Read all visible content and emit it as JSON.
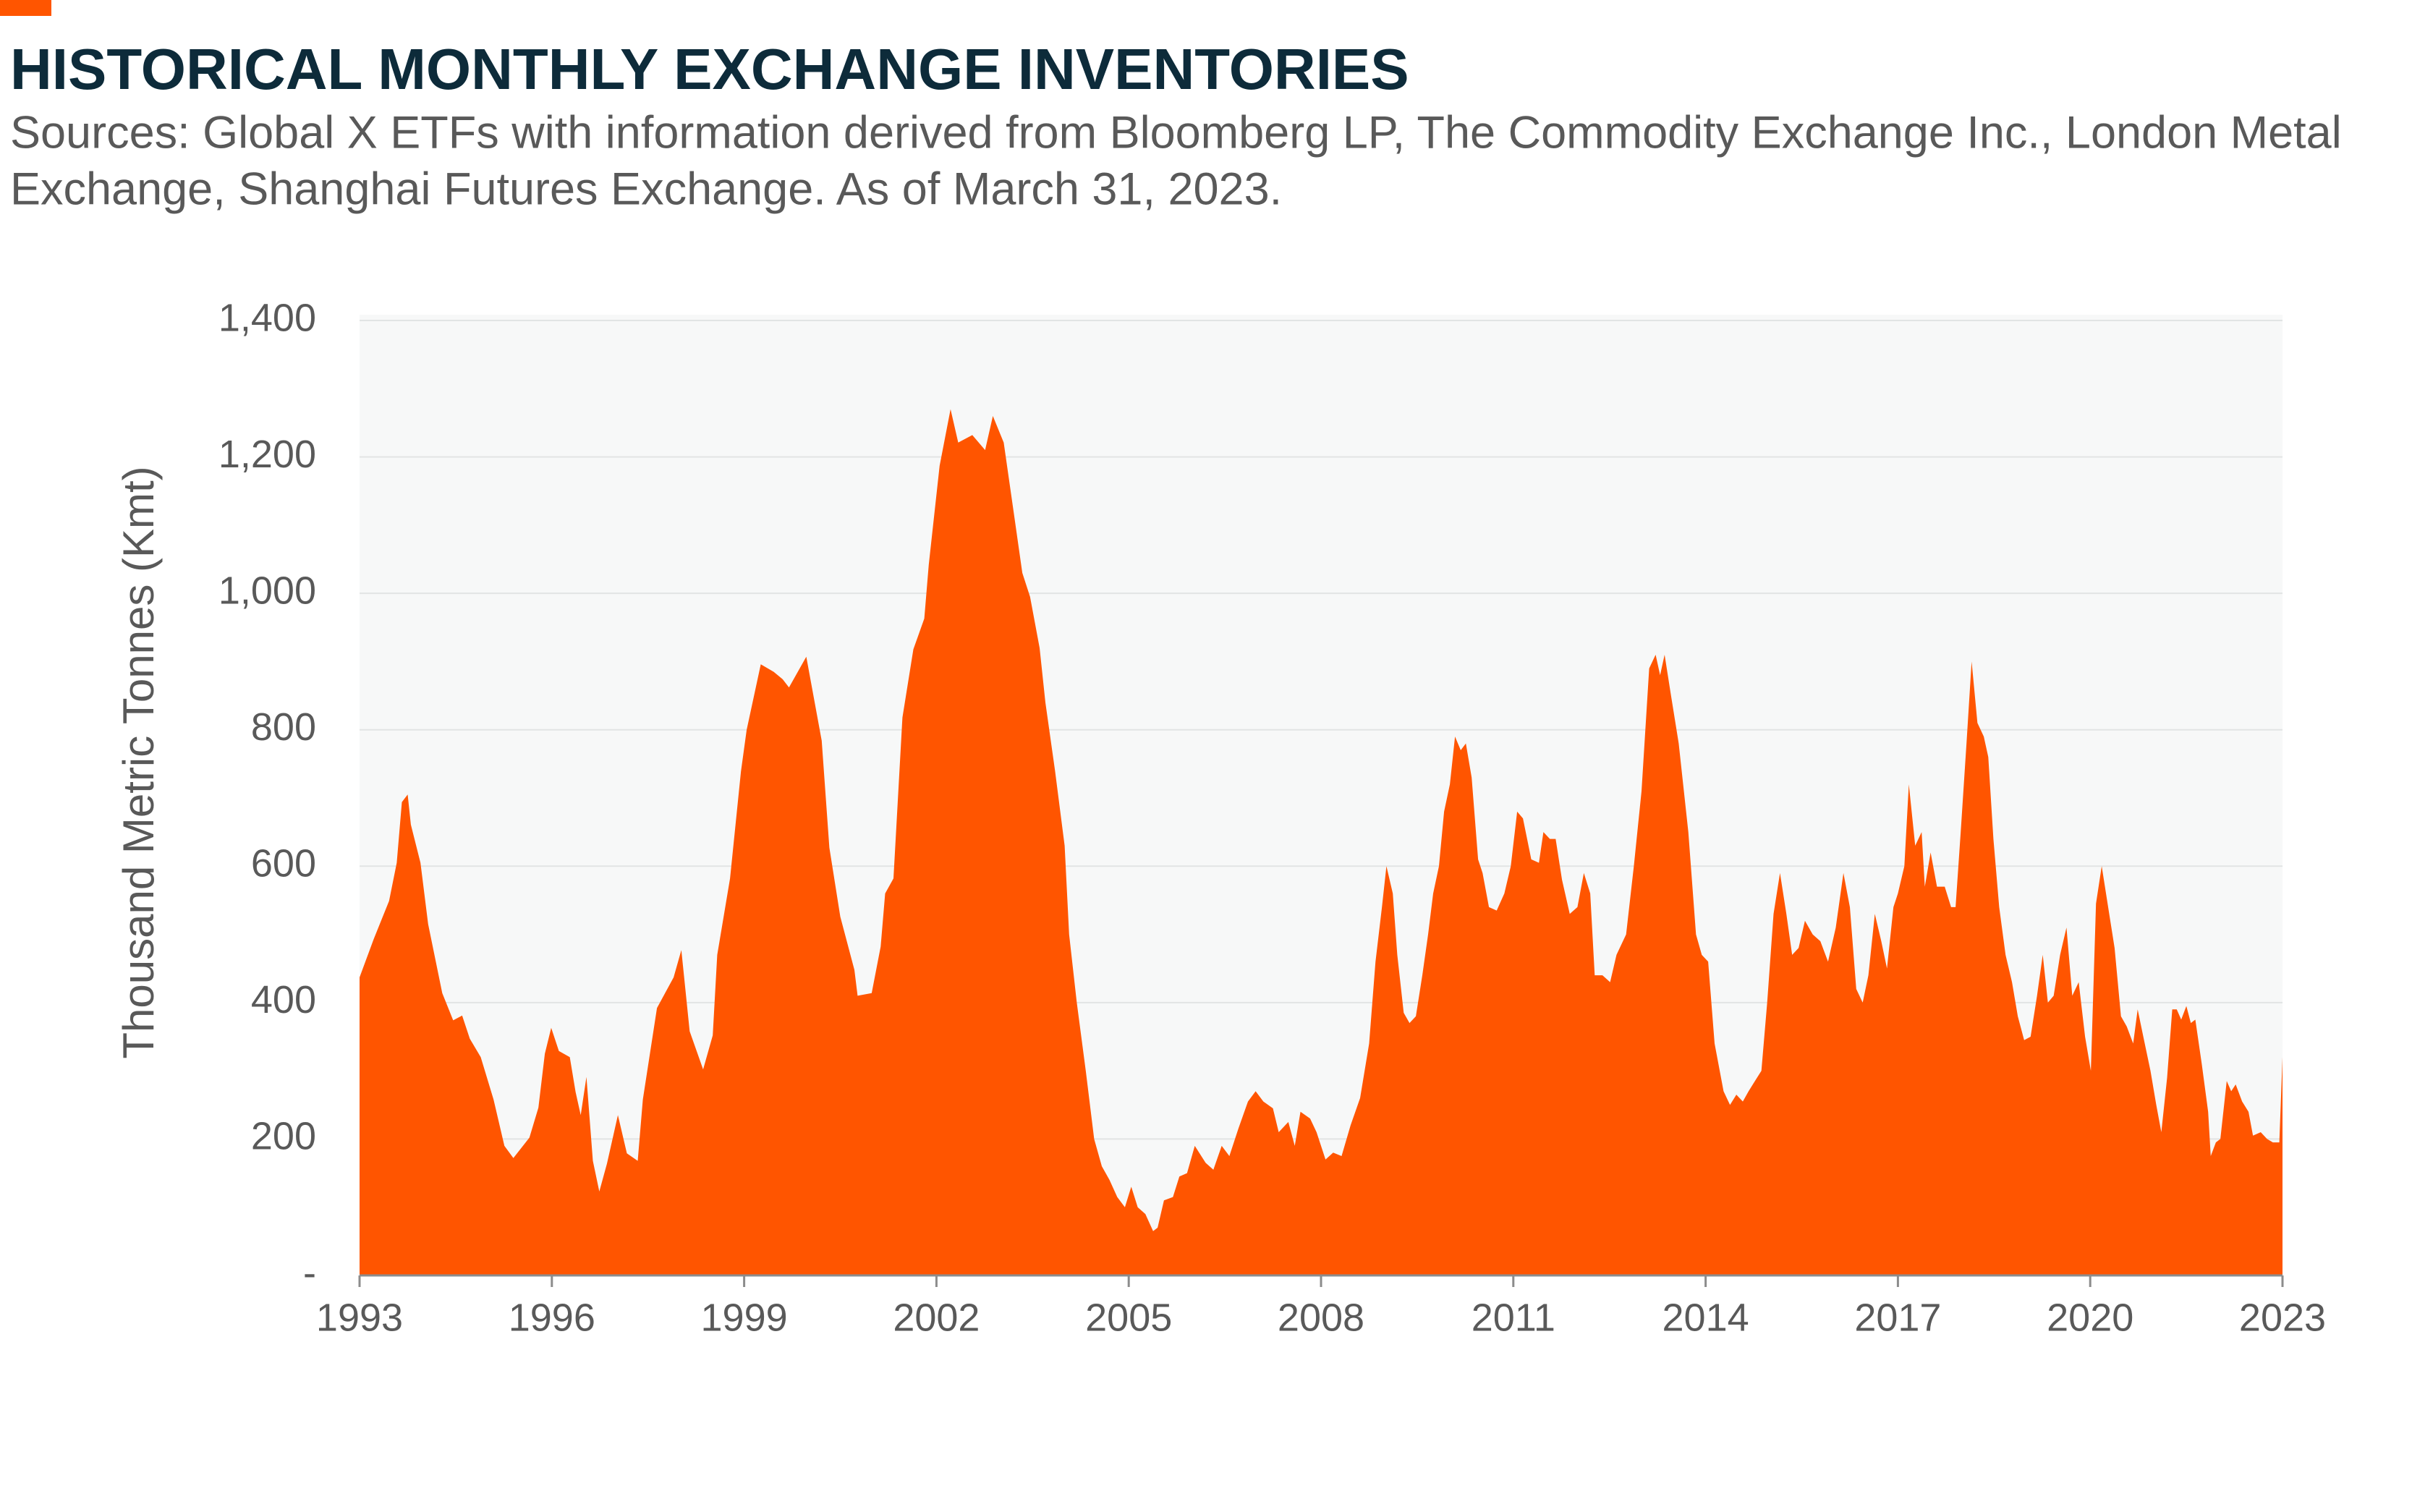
{
  "chart_data": {
    "type": "area",
    "title": "HISTORICAL MONTHLY EXCHANGE INVENTORIES",
    "subtitle": [
      "Sources: Global X ETFs with information derived from Bloomberg LP, The Commodity Exchange Inc., London Metal",
      "Exchange, Shanghai Futures Exchange. As of March 31, 2023."
    ],
    "y_label": "Thousand Metric Tonnes (Kmt)",
    "color": "#ff5500",
    "grid": true,
    "xlim": [
      1993,
      2023
    ],
    "xticks": [
      1993,
      1996,
      1999,
      2002,
      2005,
      2008,
      2011,
      2014,
      2017,
      2020,
      2023
    ],
    "ylim": [
      0,
      1400
    ],
    "yticks": [
      {
        "value": 0,
        "label": "-"
      },
      200,
      400,
      600,
      800,
      {
        "value": 1000,
        "label": "1,000"
      },
      {
        "value": 1200,
        "label": "1,200"
      },
      {
        "value": 1400,
        "label": "1,400"
      }
    ],
    "x": [
      1993.0,
      1993.22,
      1993.46,
      1993.58,
      1993.66,
      1993.75,
      1993.8,
      1993.95,
      1994.07,
      1994.29,
      1994.46,
      1994.6,
      1994.72,
      1994.89,
      1995.09,
      1995.26,
      1995.4,
      1995.65,
      1995.79,
      1995.89,
      1995.99,
      1996.11,
      1996.28,
      1996.37,
      1996.45,
      1996.54,
      1996.64,
      1996.74,
      1996.86,
      1997.03,
      1997.17,
      1997.34,
      1997.42,
      1997.64,
      1997.9,
      1998.02,
      1998.15,
      1998.36,
      1998.51,
      1998.58,
      1998.78,
      1998.95,
      1999.04,
      1999.26,
      1999.46,
      1999.6,
      1999.7,
      1999.97,
      2000.21,
      2000.33,
      2000.5,
      2000.72,
      2000.77,
      2000.99,
      2001.13,
      2001.2,
      2001.33,
      2001.47,
      2001.64,
      2001.81,
      2001.88,
      2002.05,
      2002.22,
      2002.34,
      2002.56,
      2002.76,
      2002.88,
      2003.05,
      2003.22,
      2003.34,
      2003.46,
      2003.61,
      2003.7,
      2003.85,
      2004.0,
      2004.07,
      2004.19,
      2004.33,
      2004.46,
      2004.58,
      2004.7,
      2004.82,
      2004.94,
      2005.04,
      2005.14,
      2005.26,
      2005.38,
      2005.45,
      2005.55,
      2005.69,
      2005.79,
      2005.91,
      2006.03,
      2006.2,
      2006.32,
      2006.45,
      2006.57,
      2006.71,
      2006.86,
      2006.98,
      2007.1,
      2007.25,
      2007.34,
      2007.49,
      2007.59,
      2007.68,
      2007.83,
      2007.93,
      2008.07,
      2008.19,
      2008.32,
      2008.46,
      2008.61,
      2008.75,
      2008.85,
      2008.95,
      2009.02,
      2009.12,
      2009.19,
      2009.29,
      2009.38,
      2009.48,
      2009.58,
      2009.67,
      2009.75,
      2009.84,
      2009.92,
      2010.01,
      2010.09,
      2010.18,
      2010.26,
      2010.35,
      2010.45,
      2010.52,
      2010.62,
      2010.74,
      2010.86,
      2010.96,
      2011.06,
      2011.15,
      2011.28,
      2011.4,
      2011.47,
      2011.57,
      2011.66,
      2011.76,
      2011.88,
      2012.0,
      2012.1,
      2012.2,
      2012.27,
      2012.39,
      2012.51,
      2012.61,
      2012.76,
      2012.88,
      2013.0,
      2013.12,
      2013.22,
      2013.29,
      2013.36,
      2013.46,
      2013.58,
      2013.73,
      2013.85,
      2013.94,
      2014.04,
      2014.14,
      2014.28,
      2014.38,
      2014.48,
      2014.58,
      2014.67,
      2014.77,
      2014.87,
      2014.96,
      2015.06,
      2015.16,
      2015.26,
      2015.35,
      2015.45,
      2015.55,
      2015.67,
      2015.79,
      2015.91,
      2016.03,
      2016.15,
      2016.25,
      2016.35,
      2016.45,
      2016.54,
      2016.64,
      2016.74,
      2016.83,
      2016.93,
      2017.0,
      2017.1,
      2017.17,
      2017.27,
      2017.37,
      2017.42,
      2017.51,
      2017.61,
      2017.73,
      2017.83,
      2017.9,
      2017.98,
      2018.07,
      2018.15,
      2018.24,
      2018.34,
      2018.41,
      2018.49,
      2018.58,
      2018.68,
      2018.78,
      2018.87,
      2018.97,
      2019.07,
      2019.17,
      2019.26,
      2019.34,
      2019.43,
      2019.53,
      2019.63,
      2019.72,
      2019.82,
      2019.92,
      2020.01,
      2020.09,
      2020.18,
      2020.28,
      2020.38,
      2020.48,
      2020.57,
      2020.67,
      2020.74,
      2020.84,
      2020.94,
      2021.03,
      2021.11,
      2021.2,
      2021.28,
      2021.35,
      2021.42,
      2021.5,
      2021.57,
      2021.64,
      2021.74,
      2021.84,
      2021.88,
      2021.96,
      2022.03,
      2022.13,
      2022.2,
      2022.27,
      2022.37,
      2022.47,
      2022.54,
      2022.66,
      2022.76,
      2022.85,
      2022.95,
      2023.0
    ],
    "values": [
      437,
      493,
      549,
      605,
      694,
      705,
      661,
      605,
      515,
      414,
      374,
      381,
      347,
      320,
      258,
      190,
      172,
      202,
      246,
      325,
      363,
      329,
      320,
      269,
      235,
      291,
      168,
      123,
      164,
      235,
      179,
      168,
      258,
      392,
      437,
      477,
      358,
      302,
      352,
      470,
      582,
      739,
      800,
      896,
      885,
      874,
      862,
      907,
      784,
      627,
      526,
      448,
      410,
      414,
      482,
      560,
      582,
      818,
      918,
      963,
      1042,
      1187,
      1270,
      1221,
      1232,
      1210,
      1260,
      1221,
      1109,
      1030,
      995,
      920,
      840,
      740,
      630,
      500,
      400,
      300,
      200,
      160,
      140,
      115,
      100,
      130,
      100,
      90,
      65,
      70,
      110,
      115,
      145,
      150,
      190,
      165,
      155,
      190,
      175,
      215,
      255,
      270,
      255,
      245,
      210,
      225,
      190,
      240,
      230,
      210,
      170,
      180,
      175,
      220,
      260,
      340,
      460,
      540,
      600,
      560,
      470,
      385,
      370,
      380,
      440,
      500,
      560,
      600,
      680,
      720,
      790,
      770,
      780,
      730,
      610,
      590,
      540,
      535,
      560,
      600,
      680,
      670,
      610,
      605,
      650,
      640,
      640,
      580,
      530,
      540,
      590,
      560,
      440,
      440,
      430,
      470,
      500,
      600,
      710,
      890,
      910,
      880,
      910,
      850,
      780,
      650,
      500,
      470,
      460,
      340,
      270,
      250,
      265,
      255,
      270,
      285,
      300,
      400,
      530,
      590,
      530,
      470,
      480,
      520,
      500,
      490,
      460,
      510,
      590,
      540,
      420,
      400,
      440,
      530,
      490,
      450,
      540,
      560,
      600,
      720,
      630,
      650,
      570,
      620,
      570,
      570,
      540,
      540,
      650,
      780,
      900,
      810,
      790,
      760,
      640,
      540,
      470,
      430,
      380,
      345,
      350,
      410,
      470,
      400,
      410,
      470,
      510,
      410,
      430,
      350,
      300,
      545,
      600,
      540,
      480,
      380,
      365,
      340,
      390,
      345,
      300,
      250,
      210,
      290,
      390,
      390,
      375,
      395,
      370,
      375,
      310,
      240,
      175,
      195,
      200,
      285,
      270,
      280,
      255,
      240,
      205,
      210,
      200,
      195,
      195,
      320
    ]
  }
}
